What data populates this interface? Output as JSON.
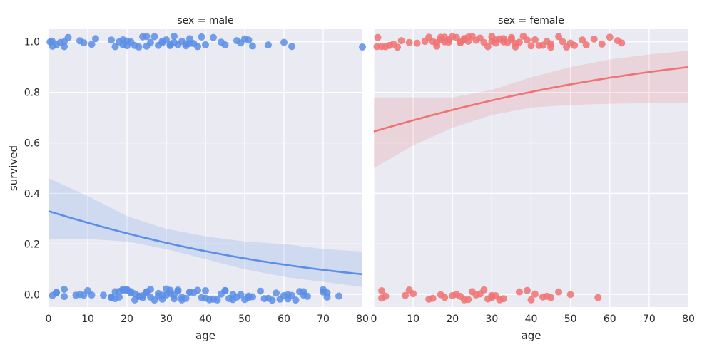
{
  "chart_data": [
    {
      "type": "scatter",
      "title": "sex = male",
      "xlabel": "age",
      "ylabel": "survived",
      "xlim": [
        0,
        80
      ],
      "ylim": [
        -0.05,
        1.05
      ],
      "xticks": [
        "0",
        "10",
        "20",
        "30",
        "40",
        "50",
        "60",
        "70",
        "80"
      ],
      "yticks": [
        "0.0",
        "0.2",
        "0.4",
        "0.6",
        "0.8",
        "1.0"
      ],
      "color": "#5b8ee6",
      "grid": true,
      "points_survived_age": [
        0.4,
        0.9,
        1,
        2,
        3,
        4,
        4,
        5,
        8,
        9,
        11,
        12,
        16,
        17,
        18,
        19,
        19,
        20,
        20,
        21,
        22,
        23,
        24,
        25,
        25,
        26,
        27,
        28,
        29,
        29,
        30,
        31,
        31,
        32,
        32,
        33,
        34,
        35,
        35,
        36,
        36,
        37,
        38,
        39,
        40,
        42,
        44,
        45,
        48,
        49,
        50,
        51,
        52,
        56,
        60,
        62,
        80
      ],
      "points_died_age": [
        1,
        2,
        2,
        4,
        4,
        7,
        8,
        9,
        10,
        11,
        14,
        16,
        16,
        17,
        17,
        18,
        18,
        19,
        19,
        20,
        20,
        21,
        21,
        22,
        22,
        23,
        23,
        24,
        24,
        25,
        25,
        26,
        26,
        27,
        28,
        28,
        29,
        29,
        30,
        30,
        31,
        31,
        32,
        32,
        33,
        33,
        34,
        34,
        35,
        36,
        36,
        37,
        38,
        39,
        40,
        40,
        41,
        42,
        43,
        44,
        45,
        45,
        46,
        47,
        47,
        48,
        49,
        50,
        51,
        51,
        52,
        54,
        55,
        56,
        57,
        58,
        59,
        60,
        61,
        61,
        62,
        63,
        64,
        65,
        65,
        66,
        70,
        70,
        71,
        71,
        74
      ],
      "fit": {
        "intercept_logit": -0.708,
        "slope": -0.02168
      },
      "ci": {
        "x": [
          0,
          10,
          20,
          30,
          40,
          50,
          60,
          70,
          80
        ],
        "lower": [
          0.22,
          0.22,
          0.21,
          0.18,
          0.14,
          0.1,
          0.07,
          0.05,
          0.03
        ],
        "upper": [
          0.46,
          0.39,
          0.31,
          0.26,
          0.23,
          0.21,
          0.2,
          0.18,
          0.17
        ]
      }
    },
    {
      "type": "scatter",
      "title": "sex = female",
      "xlabel": "age",
      "ylabel": "",
      "xlim": [
        0,
        80
      ],
      "ylim": [
        -0.05,
        1.05
      ],
      "xticks": [
        "0",
        "10",
        "20",
        "30",
        "40",
        "50",
        "60",
        "70",
        "80"
      ],
      "color": "#f07272",
      "grid": true,
      "points_survived_age": [
        0.8,
        1,
        2,
        3,
        4,
        5,
        6,
        7,
        9,
        11,
        13,
        14,
        15,
        16,
        16,
        17,
        17,
        18,
        18,
        19,
        19,
        20,
        21,
        22,
        22,
        23,
        23,
        24,
        24,
        25,
        26,
        27,
        28,
        29,
        30,
        30,
        31,
        31,
        32,
        33,
        33,
        34,
        35,
        35,
        36,
        36,
        37,
        38,
        39,
        40,
        41,
        42,
        43,
        44,
        45,
        45,
        47,
        48,
        49,
        50,
        51,
        53,
        54,
        56,
        58,
        60,
        62,
        63
      ],
      "points_died_age": [
        2,
        2,
        3,
        8,
        9,
        10,
        14,
        15,
        17,
        18,
        20,
        21,
        22,
        23,
        24,
        25,
        26,
        27,
        28,
        29,
        30,
        30,
        31,
        32,
        33,
        37,
        39,
        40,
        41,
        43,
        44,
        45,
        47,
        50,
        57
      ],
      "fit": {
        "intercept_logit": 0.597,
        "slope": 0.02
      },
      "ci": {
        "x": [
          0,
          10,
          20,
          30,
          40,
          50,
          60,
          70,
          80
        ],
        "lower": [
          0.5,
          0.59,
          0.66,
          0.71,
          0.74,
          0.75,
          0.755,
          0.757,
          0.76
        ],
        "upper": [
          0.78,
          0.78,
          0.78,
          0.81,
          0.86,
          0.9,
          0.93,
          0.95,
          0.965
        ]
      }
    }
  ]
}
